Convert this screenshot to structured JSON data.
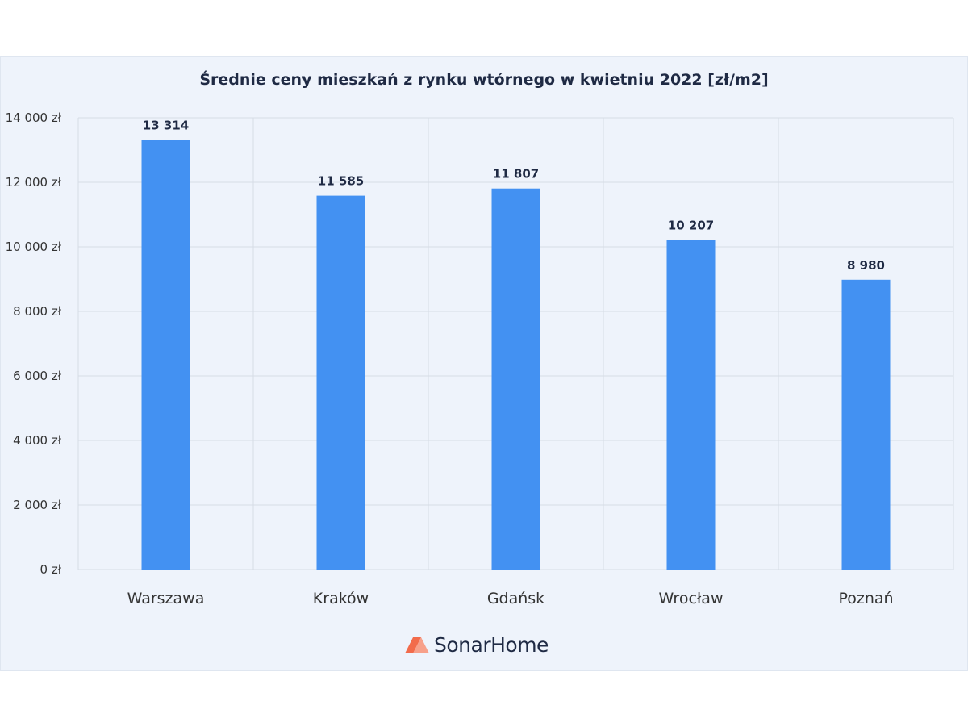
{
  "chart_data": {
    "type": "bar",
    "title": "Średnie ceny mieszkań z rynku wtórnego w kwietniu 2022 [zł/m2]",
    "categories": [
      "Warszawa",
      "Kraków",
      "Gdańsk",
      "Wrocław",
      "Poznań"
    ],
    "values": [
      13314,
      11585,
      11807,
      10207,
      8980
    ],
    "value_labels": [
      "13 314",
      "11 585",
      "11 807",
      "10 207",
      "8 980"
    ],
    "ylim": [
      0,
      14000
    ],
    "yticks": [
      0,
      2000,
      4000,
      6000,
      8000,
      10000,
      12000,
      14000
    ],
    "ytick_labels": [
      "0 zł",
      "2 000 zł",
      "4 000 zł",
      "6 000 zł",
      "8 000 zł",
      "10 000 zł",
      "12 000 zł",
      "14 000 zł"
    ],
    "xlabel": "",
    "ylabel": "",
    "grid": true,
    "legend": "none",
    "bar_color": "#4391f2"
  },
  "brand": {
    "name": "SonarHome",
    "icon": "house-roof-icon",
    "icon_colors": [
      "#f26b4b",
      "#f7a08a"
    ]
  }
}
